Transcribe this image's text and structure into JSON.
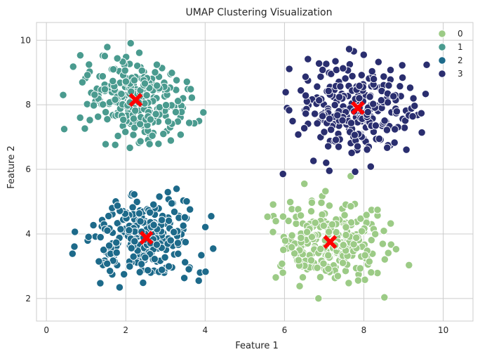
{
  "chart_data": {
    "type": "scatter",
    "title": "UMAP Clustering Visualization",
    "xlabel": "Feature 1",
    "ylabel": "Feature 2",
    "xlim": [
      -0.25,
      10.75
    ],
    "ylim": [
      1.3,
      10.55
    ],
    "xticks": [
      0,
      2,
      4,
      6,
      8,
      10
    ],
    "yticks": [
      2,
      4,
      6,
      8,
      10
    ],
    "grid": true,
    "legend_position": "top-right",
    "legend_title": "",
    "series": [
      {
        "name": "0",
        "color": "#9ccb86",
        "center": [
          7.15,
          3.75
        ],
        "spread": [
          1.05,
          0.95
        ],
        "bounds": [
          5.2,
          9.4,
          1.7,
          5.8
        ],
        "count": 260
      },
      {
        "name": "1",
        "color": "#4a9b8f",
        "center": [
          2.25,
          8.2
        ],
        "spread": [
          1.0,
          0.9
        ],
        "bounds": [
          0.2,
          4.4,
          6.4,
          10.1
        ],
        "count": 260
      },
      {
        "name": "2",
        "color": "#1d6a8a",
        "center": [
          2.5,
          3.85
        ],
        "spread": [
          1.0,
          0.9
        ],
        "bounds": [
          0.45,
          4.45,
          2.0,
          5.95
        ],
        "count": 260
      },
      {
        "name": "3",
        "color": "#2a2e6f",
        "center": [
          7.8,
          7.9
        ],
        "spread": [
          1.1,
          1.0
        ],
        "bounds": [
          5.6,
          10.35,
          5.5,
          9.85
        ],
        "count": 260
      }
    ],
    "centroids": [
      {
        "x": 7.15,
        "y": 3.75
      },
      {
        "x": 2.25,
        "y": 8.15
      },
      {
        "x": 2.52,
        "y": 3.88
      },
      {
        "x": 7.85,
        "y": 7.9
      }
    ],
    "centroid_color": "#ff0000",
    "plot_background": "#eaeaf2"
  }
}
